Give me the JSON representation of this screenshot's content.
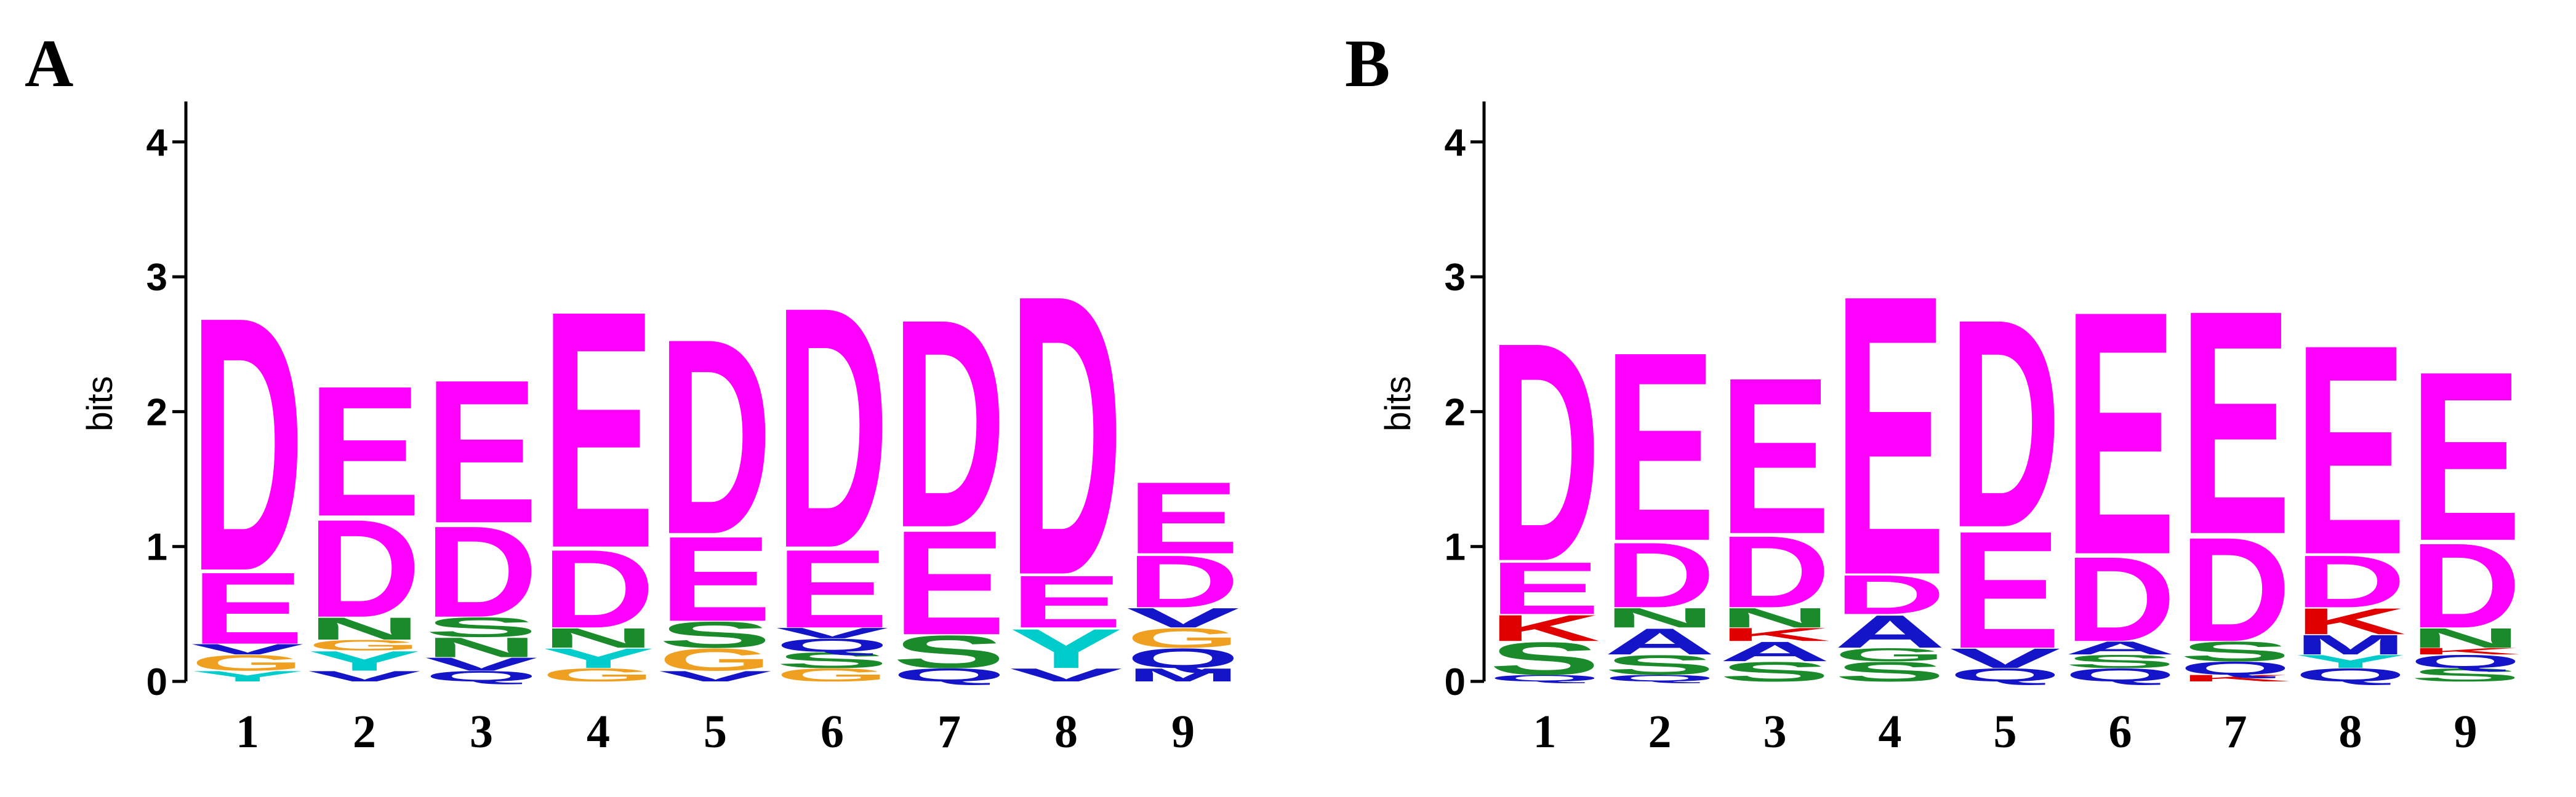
{
  "chart_data": [
    {
      "type": "logo",
      "panel_label": "A",
      "ylabel": "bits",
      "ylim": [
        0,
        4.3
      ],
      "yticks": [
        0,
        1,
        2,
        3,
        4
      ],
      "letter_colors": {
        "D": "#ff00ff",
        "E": "#ff00ff",
        "N": "#1a8a2a",
        "S": "#1a8a2a",
        "G": "#f0a020",
        "Y": "#00cccc",
        "V": "#1414c8",
        "A": "#1414c8",
        "M": "#1414c8",
        "Q": "#1414c8",
        "K": "#e00000"
      },
      "categories": [
        "1",
        "2",
        "3",
        "4",
        "5",
        "6",
        "7",
        "8",
        "9"
      ],
      "stacks": [
        [
          {
            "letter": "Y",
            "value": 0.08
          },
          {
            "letter": "G",
            "value": 0.12
          },
          {
            "letter": "V",
            "value": 0.08
          },
          {
            "letter": "E",
            "value": 0.55
          },
          {
            "letter": "D",
            "value": 1.95
          }
        ],
        [
          {
            "letter": "V",
            "value": 0.08
          },
          {
            "letter": "Y",
            "value": 0.15
          },
          {
            "letter": "G",
            "value": 0.08
          },
          {
            "letter": "N",
            "value": 0.17
          },
          {
            "letter": "D",
            "value": 0.75
          },
          {
            "letter": "E",
            "value": 1.0
          }
        ],
        [
          {
            "letter": "Q",
            "value": 0.08
          },
          {
            "letter": "V",
            "value": 0.1
          },
          {
            "letter": "N",
            "value": 0.15
          },
          {
            "letter": "S",
            "value": 0.15
          },
          {
            "letter": "D",
            "value": 0.7
          },
          {
            "letter": "E",
            "value": 1.1
          }
        ],
        [
          {
            "letter": "G",
            "value": 0.1
          },
          {
            "letter": "Y",
            "value": 0.15
          },
          {
            "letter": "N",
            "value": 0.15
          },
          {
            "letter": "D",
            "value": 0.6
          },
          {
            "letter": "E",
            "value": 1.82
          }
        ],
        [
          {
            "letter": "V",
            "value": 0.08
          },
          {
            "letter": "G",
            "value": 0.17
          },
          {
            "letter": "S",
            "value": 0.2
          },
          {
            "letter": "E",
            "value": 0.65
          },
          {
            "letter": "D",
            "value": 1.5
          }
        ],
        [
          {
            "letter": "G",
            "value": 0.1
          },
          {
            "letter": "S",
            "value": 0.12
          },
          {
            "letter": "Q",
            "value": 0.1
          },
          {
            "letter": "V",
            "value": 0.08
          },
          {
            "letter": "E",
            "value": 0.6
          },
          {
            "letter": "D",
            "value": 1.85
          }
        ],
        [
          {
            "letter": "Q",
            "value": 0.1
          },
          {
            "letter": "S",
            "value": 0.25
          },
          {
            "letter": "E",
            "value": 0.8
          },
          {
            "letter": "D",
            "value": 1.6
          }
        ],
        [
          {
            "letter": "V",
            "value": 0.1
          },
          {
            "letter": "Y",
            "value": 0.3
          },
          {
            "letter": "E",
            "value": 0.4
          },
          {
            "letter": "D",
            "value": 2.15
          }
        ],
        [
          {
            "letter": "M",
            "value": 0.1
          },
          {
            "letter": "Q",
            "value": 0.15
          },
          {
            "letter": "G",
            "value": 0.15
          },
          {
            "letter": "V",
            "value": 0.15
          },
          {
            "letter": "D",
            "value": 0.4
          },
          {
            "letter": "E",
            "value": 0.55
          }
        ]
      ]
    },
    {
      "type": "logo",
      "panel_label": "B",
      "ylabel": "bits",
      "ylim": [
        0,
        4.3
      ],
      "yticks": [
        0,
        1,
        2,
        3,
        4
      ],
      "letter_colors": {
        "D": "#ff00ff",
        "E": "#ff00ff",
        "N": "#1a8a2a",
        "S": "#1a8a2a",
        "G": "#1a8a2a",
        "Y": "#00cccc",
        "V": "#1414c8",
        "A": "#1414c8",
        "M": "#1414c8",
        "Q": "#1414c8",
        "K": "#e00000"
      },
      "categories": [
        "1",
        "2",
        "3",
        "4",
        "5",
        "6",
        "7",
        "8",
        "9"
      ],
      "stacks": [
        [
          {
            "letter": "Q",
            "value": 0.05
          },
          {
            "letter": "S",
            "value": 0.25
          },
          {
            "letter": "K",
            "value": 0.2
          },
          {
            "letter": "E",
            "value": 0.4
          },
          {
            "letter": "D",
            "value": 1.68
          }
        ],
        [
          {
            "letter": "Q",
            "value": 0.05
          },
          {
            "letter": "S",
            "value": 0.15
          },
          {
            "letter": "A",
            "value": 0.2
          },
          {
            "letter": "N",
            "value": 0.15
          },
          {
            "letter": "D",
            "value": 0.5
          },
          {
            "letter": "E",
            "value": 1.45
          }
        ],
        [
          {
            "letter": "S",
            "value": 0.15
          },
          {
            "letter": "A",
            "value": 0.15
          },
          {
            "letter": "K",
            "value": 0.1
          },
          {
            "letter": "N",
            "value": 0.15
          },
          {
            "letter": "D",
            "value": 0.55
          },
          {
            "letter": "E",
            "value": 1.2
          }
        ],
        [
          {
            "letter": "S",
            "value": 0.15
          },
          {
            "letter": "G",
            "value": 0.1
          },
          {
            "letter": "A",
            "value": 0.25
          },
          {
            "letter": "D",
            "value": 0.3
          },
          {
            "letter": "E",
            "value": 2.15
          }
        ],
        [
          {
            "letter": "Q",
            "value": 0.1
          },
          {
            "letter": "V",
            "value": 0.15
          },
          {
            "letter": "E",
            "value": 0.9
          },
          {
            "letter": "D",
            "value": 1.6
          }
        ],
        [
          {
            "letter": "Q",
            "value": 0.1
          },
          {
            "letter": "S",
            "value": 0.1
          },
          {
            "letter": "A",
            "value": 0.1
          },
          {
            "letter": "D",
            "value": 0.65
          },
          {
            "letter": "E",
            "value": 1.87
          }
        ],
        [
          {
            "letter": "K",
            "value": 0.05
          },
          {
            "letter": "Q",
            "value": 0.1
          },
          {
            "letter": "S",
            "value": 0.15
          },
          {
            "letter": "D",
            "value": 0.8
          },
          {
            "letter": "E",
            "value": 1.72
          }
        ],
        [
          {
            "letter": "Q",
            "value": 0.1
          },
          {
            "letter": "Y",
            "value": 0.1
          },
          {
            "letter": "M",
            "value": 0.15
          },
          {
            "letter": "K",
            "value": 0.2
          },
          {
            "letter": "D",
            "value": 0.4
          },
          {
            "letter": "E",
            "value": 1.61
          }
        ],
        [
          {
            "letter": "S",
            "value": 0.1
          },
          {
            "letter": "Q",
            "value": 0.1
          },
          {
            "letter": "K",
            "value": 0.05
          },
          {
            "letter": "N",
            "value": 0.15
          },
          {
            "letter": "D",
            "value": 0.65
          },
          {
            "letter": "E",
            "value": 1.3
          }
        ]
      ]
    }
  ]
}
